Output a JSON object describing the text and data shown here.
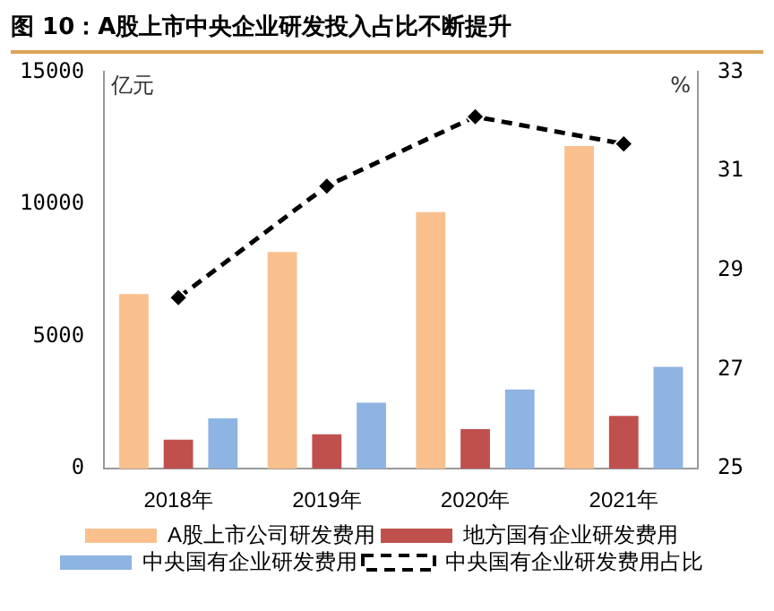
{
  "chart_data": {
    "type": "bar",
    "title": "图 10：A股上市中央企业研发投入占比不断提升",
    "ylabel": "亿元",
    "y2label": "%",
    "categories": [
      "2018年",
      "2019年",
      "2020年",
      "2021年"
    ],
    "series": [
      {
        "name": "A股上市公司研发费用",
        "color": "#f9c08e",
        "values": [
          6600,
          8200,
          9700,
          12200
        ]
      },
      {
        "name": "地方国有企业研发费用",
        "color": "#c0504d",
        "values": [
          1100,
          1300,
          1500,
          2000
        ]
      },
      {
        "name": "中央国有企业研发费用",
        "color": "#8db4e2",
        "values": [
          1900,
          2500,
          3000,
          3850
        ]
      },
      {
        "name": "中央国有企业研发费用占比",
        "type": "line",
        "axis": "y2",
        "color": "#000000",
        "marker": "diamond",
        "line_style": "dashed",
        "values": [
          28.45,
          30.7,
          32.1,
          31.55
        ]
      }
    ],
    "ylim": [
      0,
      15000
    ],
    "yticks": [
      0,
      5000,
      10000,
      15000
    ],
    "y2lim": [
      25,
      33
    ],
    "y2ticks": [
      25,
      27,
      29,
      31,
      33
    ],
    "grid": false,
    "legend": "bottom"
  }
}
